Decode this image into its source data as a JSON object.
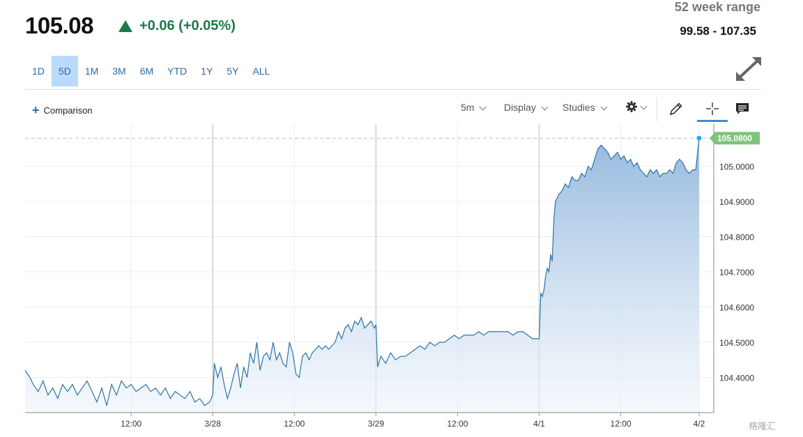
{
  "quote": {
    "price": "105.08",
    "change": "+0.06 (+0.05%)",
    "range_label": "52 week range",
    "range_value": "99.58 - 107.35"
  },
  "periods": [
    "1D",
    "5D",
    "1M",
    "3M",
    "6M",
    "YTD",
    "1Y",
    "5Y",
    "ALL"
  ],
  "active_period": "5D",
  "toolbar": {
    "comparison_label": "Comparison",
    "interval_label": "5m",
    "display_label": "Display",
    "studies_label": "Studies"
  },
  "icons": {
    "expand": "expand-arrows-icon",
    "settings": "gear-icon",
    "draw": "pencil-icon",
    "crosshair": "crosshair-icon",
    "comment": "comment-icon",
    "add": "plus-icon",
    "up": "triangle-up-icon"
  },
  "colors": {
    "positive": "#1d7a4a",
    "line": "#2d72a6",
    "last_price_tag": "#7fc47a",
    "active_period_bg": "#b9dafd"
  },
  "watermark": "格隆汇",
  "chart_data": {
    "type": "area",
    "title": "",
    "xlabel": "",
    "ylabel": "",
    "y_ticks": [
      "104.4000",
      "104.5000",
      "104.6000",
      "104.7000",
      "104.8000",
      "104.9000",
      "105.0000"
    ],
    "ylim": [
      104.3,
      105.12
    ],
    "x_ticks": [
      {
        "t": 0.5,
        "label": "12:00",
        "day_boundary": false
      },
      {
        "t": 1.0,
        "label": "3/28",
        "day_boundary": true
      },
      {
        "t": 1.5,
        "label": "12:00",
        "day_boundary": false
      },
      {
        "t": 2.0,
        "label": "3/29",
        "day_boundary": true
      },
      {
        "t": 2.5,
        "label": "12:00",
        "day_boundary": false
      },
      {
        "t": 3.0,
        "label": "4/1",
        "day_boundary": true
      },
      {
        "t": 3.5,
        "label": "12:00",
        "day_boundary": false
      },
      {
        "t": 3.98,
        "label": "4/2",
        "day_boundary": false
      }
    ],
    "xlim": [
      -0.15,
      4.07
    ],
    "last_price": "105.0800",
    "last_value": 105.08,
    "grid": true,
    "series": [
      {
        "x": [
          -0.15,
          -0.12,
          -0.1,
          -0.07,
          -0.04,
          -0.01,
          0.02,
          0.05,
          0.08,
          0.11,
          0.14,
          0.17,
          0.2,
          0.23,
          0.26,
          0.29,
          0.32,
          0.35,
          0.38,
          0.41,
          0.44,
          0.47,
          0.5,
          0.53,
          0.56,
          0.59,
          0.62,
          0.65,
          0.68,
          0.71,
          0.74,
          0.77,
          0.8,
          0.83,
          0.86,
          0.89,
          0.92,
          0.95,
          0.98,
          1.0,
          1.01,
          1.03,
          1.05,
          1.07,
          1.09,
          1.11,
          1.13,
          1.15,
          1.17,
          1.19,
          1.21,
          1.23,
          1.25,
          1.27,
          1.29,
          1.31,
          1.33,
          1.35,
          1.37,
          1.39,
          1.41,
          1.43,
          1.45,
          1.47,
          1.49,
          1.51,
          1.53,
          1.55,
          1.57,
          1.59,
          1.61,
          1.63,
          1.65,
          1.67,
          1.69,
          1.71,
          1.73,
          1.75,
          1.77,
          1.79,
          1.81,
          1.83,
          1.85,
          1.87,
          1.89,
          1.91,
          1.93,
          1.95,
          1.97,
          1.99,
          2.0,
          2.01,
          2.03,
          2.06,
          2.09,
          2.12,
          2.15,
          2.18,
          2.21,
          2.24,
          2.27,
          2.3,
          2.33,
          2.36,
          2.39,
          2.42,
          2.45,
          2.48,
          2.51,
          2.54,
          2.57,
          2.6,
          2.63,
          2.66,
          2.69,
          2.72,
          2.75,
          2.78,
          2.81,
          2.84,
          2.87,
          2.9,
          2.93,
          2.96,
          2.99,
          3.0,
          3.01,
          3.02,
          3.03,
          3.04,
          3.05,
          3.06,
          3.07,
          3.08,
          3.09,
          3.1,
          3.12,
          3.14,
          3.16,
          3.18,
          3.2,
          3.22,
          3.24,
          3.26,
          3.28,
          3.3,
          3.32,
          3.34,
          3.36,
          3.38,
          3.4,
          3.42,
          3.44,
          3.46,
          3.48,
          3.5,
          3.52,
          3.54,
          3.56,
          3.58,
          3.6,
          3.62,
          3.64,
          3.66,
          3.68,
          3.7,
          3.72,
          3.74,
          3.76,
          3.78,
          3.8,
          3.82,
          3.84,
          3.86,
          3.88,
          3.9,
          3.92,
          3.94,
          3.96,
          3.98
        ],
        "y": [
          104.42,
          104.4,
          104.38,
          104.36,
          104.39,
          104.35,
          104.37,
          104.34,
          104.38,
          104.36,
          104.38,
          104.35,
          104.37,
          104.39,
          104.36,
          104.33,
          104.37,
          104.32,
          104.38,
          104.35,
          104.39,
          104.37,
          104.38,
          104.36,
          104.37,
          104.38,
          104.36,
          104.37,
          104.35,
          104.37,
          104.34,
          104.36,
          104.35,
          104.34,
          104.36,
          104.33,
          104.34,
          104.32,
          104.33,
          104.35,
          104.44,
          104.4,
          104.43,
          104.38,
          104.34,
          104.37,
          104.41,
          104.44,
          104.37,
          104.43,
          104.4,
          104.47,
          104.44,
          104.5,
          104.42,
          104.46,
          104.47,
          104.45,
          104.5,
          104.45,
          104.47,
          104.44,
          104.43,
          104.5,
          104.47,
          104.41,
          104.4,
          104.46,
          104.47,
          104.45,
          104.47,
          104.48,
          104.49,
          104.48,
          104.49,
          104.48,
          104.49,
          104.5,
          104.53,
          104.51,
          104.54,
          104.55,
          104.53,
          104.56,
          104.55,
          104.57,
          104.54,
          104.55,
          104.56,
          104.54,
          104.55,
          104.43,
          104.46,
          104.44,
          104.47,
          104.45,
          104.46,
          104.46,
          104.47,
          104.48,
          104.49,
          104.48,
          104.5,
          104.49,
          104.5,
          104.5,
          104.51,
          104.52,
          104.51,
          104.52,
          104.52,
          104.52,
          104.53,
          104.52,
          104.53,
          104.53,
          104.53,
          104.53,
          104.53,
          104.52,
          104.53,
          104.53,
          104.52,
          104.51,
          104.51,
          104.51,
          104.64,
          104.63,
          104.65,
          104.69,
          104.71,
          104.7,
          104.75,
          104.73,
          104.85,
          104.9,
          104.92,
          104.93,
          104.95,
          104.94,
          104.97,
          104.96,
          104.96,
          104.98,
          104.97,
          105.0,
          104.99,
          105.02,
          105.05,
          105.06,
          105.05,
          105.04,
          105.02,
          105.03,
          105.04,
          105.02,
          105.03,
          105.01,
          105.02,
          105.0,
          105.01,
          104.99,
          104.98,
          104.97,
          104.99,
          104.98,
          104.99,
          104.97,
          104.98,
          104.98,
          104.99,
          104.98,
          105.01,
          105.02,
          105.01,
          104.99,
          104.98,
          104.99,
          104.99,
          105.08
        ]
      }
    ]
  }
}
